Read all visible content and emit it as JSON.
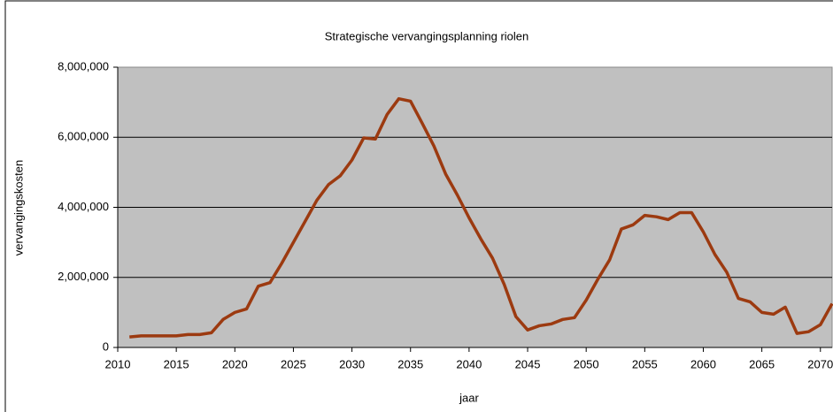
{
  "chart_data": {
    "type": "line",
    "title": "Strategische vervangingsplanning riolen",
    "x_label": "jaar",
    "y_label": "vervangingskosten",
    "x": [
      2011,
      2012,
      2013,
      2014,
      2015,
      2016,
      2017,
      2018,
      2019,
      2020,
      2021,
      2022,
      2023,
      2024,
      2025,
      2026,
      2027,
      2028,
      2029,
      2030,
      2031,
      2032,
      2033,
      2034,
      2035,
      2036,
      2037,
      2038,
      2039,
      2040,
      2041,
      2042,
      2043,
      2044,
      2045,
      2046,
      2047,
      2048,
      2049,
      2050,
      2051,
      2052,
      2053,
      2054,
      2055,
      2056,
      2057,
      2058,
      2059,
      2060,
      2061,
      2062,
      2063,
      2064,
      2065,
      2066,
      2067,
      2068,
      2069,
      2070,
      2071
    ],
    "series": [
      {
        "name": "vervangingskosten",
        "color": "#9c3a10",
        "values": [
          300000,
          330000,
          330000,
          330000,
          330000,
          370000,
          370000,
          420000,
          800000,
          1000000,
          1100000,
          1750000,
          1850000,
          2400000,
          3000000,
          3600000,
          4200000,
          4650000,
          4900000,
          5350000,
          5980000,
          5950000,
          6650000,
          7100000,
          7030000,
          6400000,
          5750000,
          4950000,
          4350000,
          3700000,
          3100000,
          2550000,
          1800000,
          880000,
          500000,
          620000,
          670000,
          800000,
          850000,
          1350000,
          1950000,
          2500000,
          3380000,
          3500000,
          3770000,
          3730000,
          3650000,
          3850000,
          3850000,
          3300000,
          2650000,
          2150000,
          1400000,
          1300000,
          1000000,
          950000,
          1150000,
          400000,
          450000,
          650000,
          1250000
        ]
      }
    ],
    "xlim": [
      2010,
      2071
    ],
    "xticks": [
      2010,
      2015,
      2020,
      2025,
      2030,
      2035,
      2040,
      2045,
      2050,
      2055,
      2060,
      2065,
      2070
    ],
    "ylim": [
      0,
      8000000
    ],
    "yticks": [
      {
        "value": 0,
        "label": "0"
      },
      {
        "value": 2000000,
        "label": "2,000,000"
      },
      {
        "value": 4000000,
        "label": "4,000,000"
      },
      {
        "value": 6000000,
        "label": "6,000,000"
      },
      {
        "value": 8000000,
        "label": "8,000,000"
      }
    ],
    "grid": true,
    "plot_background": "#c0c0c0"
  }
}
